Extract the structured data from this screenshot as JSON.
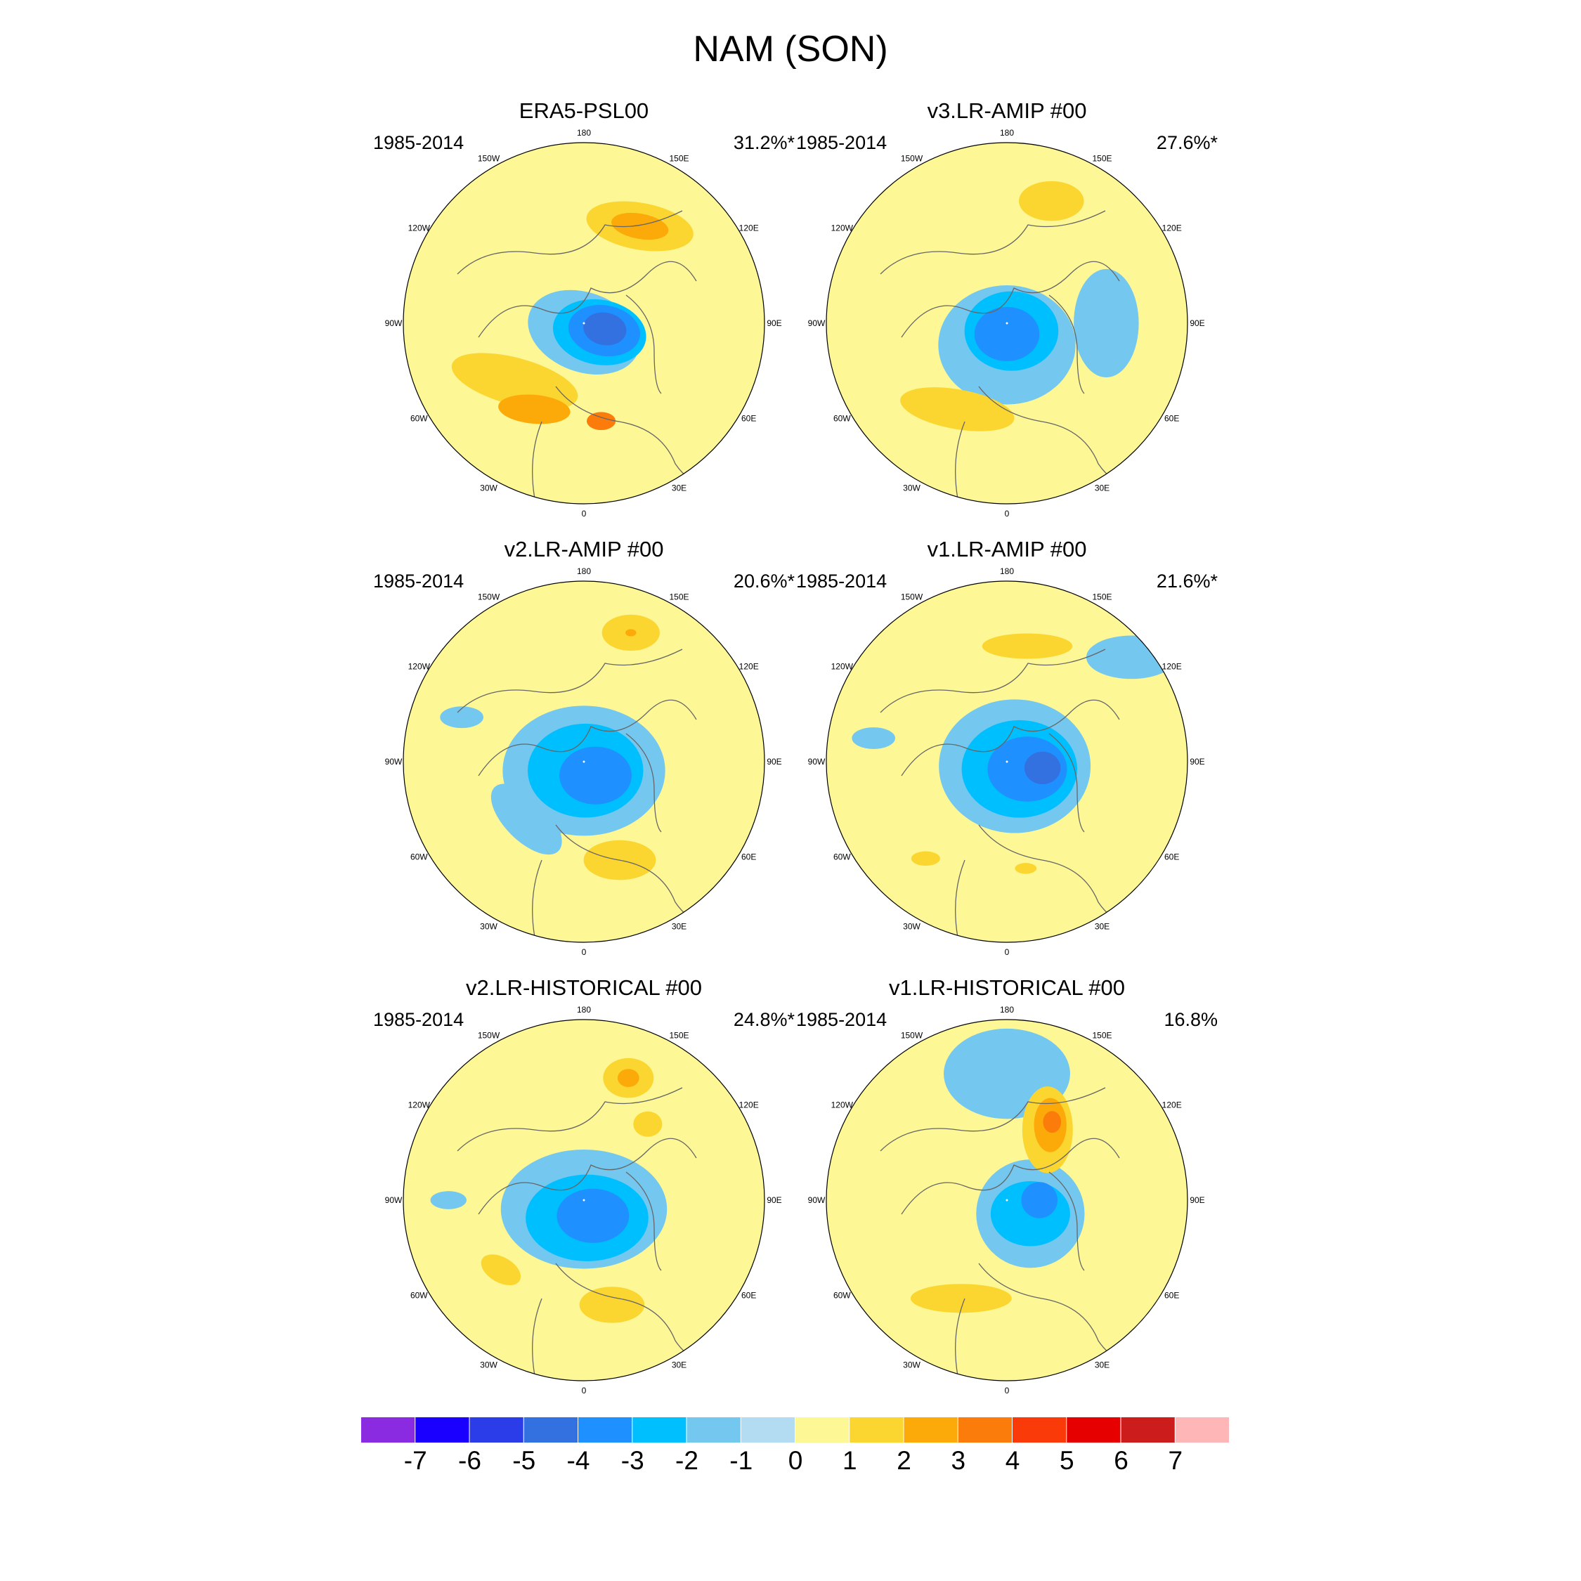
{
  "title": "NAM (SON)",
  "panels": [
    {
      "title": "ERA5-PSL00",
      "period": "1985-2014",
      "pct": "31.2%*",
      "blobs": [
        {
          "lon": 0,
          "r": 0.05,
          "rx": 0.32,
          "ry": 0.22,
          "rot": 20,
          "v": -1
        },
        {
          "lon": 60,
          "r": 0.1,
          "rx": 0.26,
          "ry": 0.18,
          "rot": 10,
          "v": -2
        },
        {
          "lon": 70,
          "r": 0.12,
          "rx": 0.2,
          "ry": 0.14,
          "rot": 10,
          "v": -3
        },
        {
          "lon": 75,
          "r": 0.12,
          "rx": 0.12,
          "ry": 0.09,
          "rot": 10,
          "v": -4
        },
        {
          "lon": 150,
          "r": 0.62,
          "rx": 0.3,
          "ry": 0.13,
          "rot": 10,
          "v": 1
        },
        {
          "lon": 150,
          "r": 0.62,
          "rx": 0.16,
          "ry": 0.07,
          "rot": 10,
          "v": 2
        },
        {
          "lon": -50,
          "r": 0.5,
          "rx": 0.36,
          "ry": 0.13,
          "rot": 15,
          "v": 1
        },
        {
          "lon": -30,
          "r": 0.55,
          "rx": 0.2,
          "ry": 0.08,
          "rot": 5,
          "v": 2
        },
        {
          "lon": 10,
          "r": 0.55,
          "rx": 0.08,
          "ry": 0.05,
          "rot": 0,
          "v": 3
        }
      ]
    },
    {
      "title": "v3.LR-AMIP  #00",
      "period": "1985-2014",
      "pct": "27.6%*",
      "blobs": [
        {
          "lon": 0,
          "r": 0.12,
          "rx": 0.38,
          "ry": 0.33,
          "rot": 0,
          "v": -1
        },
        {
          "lon": 90,
          "r": 0.55,
          "rx": 0.18,
          "ry": 0.3,
          "rot": 0,
          "v": -1
        },
        {
          "lon": 30,
          "r": 0.05,
          "rx": 0.26,
          "ry": 0.22,
          "rot": 0,
          "v": -2
        },
        {
          "lon": 0,
          "r": 0.06,
          "rx": 0.18,
          "ry": 0.15,
          "rot": 0,
          "v": -3
        },
        {
          "lon": 160,
          "r": 0.72,
          "rx": 0.18,
          "ry": 0.11,
          "rot": 0,
          "v": 1
        },
        {
          "lon": -30,
          "r": 0.55,
          "rx": 0.32,
          "ry": 0.11,
          "rot": 10,
          "v": 1
        }
      ]
    },
    {
      "title": "v2.LR-AMIP  #00",
      "period": "1985-2014",
      "pct": "20.6%*",
      "blobs": [
        {
          "lon": -45,
          "r": 0.45,
          "rx": 0.25,
          "ry": 0.12,
          "rot": 45,
          "v": -1
        },
        {
          "lon": -110,
          "r": 0.72,
          "rx": 0.12,
          "ry": 0.06,
          "rot": 0,
          "v": -1
        },
        {
          "lon": 0,
          "r": 0.05,
          "rx": 0.45,
          "ry": 0.36,
          "rot": 0,
          "v": -1
        },
        {
          "lon": 10,
          "r": 0.05,
          "rx": 0.32,
          "ry": 0.26,
          "rot": 0,
          "v": -2
        },
        {
          "lon": 40,
          "r": 0.1,
          "rx": 0.2,
          "ry": 0.16,
          "rot": 0,
          "v": -3
        },
        {
          "lon": 160,
          "r": 0.76,
          "rx": 0.16,
          "ry": 0.1,
          "rot": 0,
          "v": 1
        },
        {
          "lon": 160,
          "r": 0.76,
          "rx": 0.03,
          "ry": 0.02,
          "rot": 0,
          "v": 2
        },
        {
          "lon": 20,
          "r": 0.58,
          "rx": 0.2,
          "ry": 0.11,
          "rot": 0,
          "v": 1
        }
      ]
    },
    {
      "title": "v1.LR-AMIP  #00",
      "period": "1985-2014",
      "pct": "21.6%*",
      "blobs": [
        {
          "lon": 130,
          "r": 0.9,
          "rx": 0.25,
          "ry": 0.12,
          "rot": 0,
          "v": -1
        },
        {
          "lon": -100,
          "r": 0.75,
          "rx": 0.12,
          "ry": 0.06,
          "rot": 0,
          "v": -1
        },
        {
          "lon": 60,
          "r": 0.05,
          "rx": 0.42,
          "ry": 0.37,
          "rot": 0,
          "v": -1
        },
        {
          "lon": 60,
          "r": 0.08,
          "rx": 0.32,
          "ry": 0.27,
          "rot": 0,
          "v": -2
        },
        {
          "lon": 70,
          "r": 0.12,
          "rx": 0.22,
          "ry": 0.18,
          "rot": 0,
          "v": -3
        },
        {
          "lon": 80,
          "r": 0.2,
          "rx": 0.1,
          "ry": 0.09,
          "rot": 0,
          "v": -4
        },
        {
          "lon": 170,
          "r": 0.65,
          "rx": 0.25,
          "ry": 0.07,
          "rot": 0,
          "v": 1
        },
        {
          "lon": -40,
          "r": 0.7,
          "rx": 0.08,
          "ry": 0.04,
          "rot": 0,
          "v": 1
        },
        {
          "lon": 10,
          "r": 0.6,
          "rx": 0.06,
          "ry": 0.03,
          "rot": 0,
          "v": 1
        }
      ]
    },
    {
      "title": "v2.LR-HISTORICAL  #00",
      "period": "1985-2014",
      "pct": "24.8%*",
      "blobs": [
        {
          "lon": 0,
          "r": 0.05,
          "rx": 0.46,
          "ry": 0.33,
          "rot": 0,
          "v": -1
        },
        {
          "lon": -90,
          "r": 0.75,
          "rx": 0.1,
          "ry": 0.05,
          "rot": 0,
          "v": -1
        },
        {
          "lon": 10,
          "r": 0.1,
          "rx": 0.34,
          "ry": 0.24,
          "rot": 0,
          "v": -2
        },
        {
          "lon": 30,
          "r": 0.1,
          "rx": 0.2,
          "ry": 0.15,
          "rot": 0,
          "v": -3
        },
        {
          "lon": 160,
          "r": 0.72,
          "rx": 0.14,
          "ry": 0.11,
          "rot": 0,
          "v": 1
        },
        {
          "lon": 160,
          "r": 0.72,
          "rx": 0.06,
          "ry": 0.05,
          "rot": 0,
          "v": 2
        },
        {
          "lon": 140,
          "r": 0.55,
          "rx": 0.08,
          "ry": 0.07,
          "rot": 0,
          "v": 1
        },
        {
          "lon": -50,
          "r": 0.6,
          "rx": 0.12,
          "ry": 0.07,
          "rot": 30,
          "v": 1
        },
        {
          "lon": 15,
          "r": 0.6,
          "rx": 0.18,
          "ry": 0.1,
          "rot": 0,
          "v": 1
        }
      ]
    },
    {
      "title": "v1.LR-HISTORICAL  #00",
      "period": "1985-2014",
      "pct": "16.8%",
      "blobs": [
        {
          "lon": 180,
          "r": 0.7,
          "rx": 0.35,
          "ry": 0.25,
          "rot": 0,
          "v": -1
        },
        {
          "lon": 60,
          "r": 0.15,
          "rx": 0.3,
          "ry": 0.3,
          "rot": 0,
          "v": -1
        },
        {
          "lon": 60,
          "r": 0.15,
          "rx": 0.22,
          "ry": 0.18,
          "rot": 0,
          "v": -2
        },
        {
          "lon": 90,
          "r": 0.18,
          "rx": 0.1,
          "ry": 0.1,
          "rot": 0,
          "v": -3
        },
        {
          "lon": 150,
          "r": 0.45,
          "rx": 0.14,
          "ry": 0.24,
          "rot": 0,
          "v": 1
        },
        {
          "lon": 150,
          "r": 0.48,
          "rx": 0.09,
          "ry": 0.15,
          "rot": 0,
          "v": 2
        },
        {
          "lon": 150,
          "r": 0.5,
          "rx": 0.05,
          "ry": 0.06,
          "rot": 0,
          "v": 3
        },
        {
          "lon": -25,
          "r": 0.6,
          "rx": 0.28,
          "ry": 0.08,
          "rot": 0,
          "v": 1
        }
      ]
    }
  ],
  "lon_labels": [
    "180",
    "150E",
    "120E",
    "90E",
    "60E",
    "30E",
    "0",
    "30W",
    "60W",
    "90W",
    "120W",
    "150W"
  ],
  "colorbar": {
    "labels": [
      "-7",
      "-6",
      "-5",
      "-4",
      "-3",
      "-2",
      "-1",
      "0",
      "1",
      "2",
      "3",
      "4",
      "5",
      "6",
      "7"
    ],
    "colors": [
      "#8a2be2",
      "#1900ff",
      "#2b3de8",
      "#3370e0",
      "#1e90ff",
      "#00bfff",
      "#74c7ef",
      "#b3dbf2",
      "#fdf795",
      "#fcd630",
      "#fbaa0a",
      "#fb7c0a",
      "#fb3a0a",
      "#e60000",
      "#cc1c1c",
      "#ffb6b6"
    ]
  }
}
